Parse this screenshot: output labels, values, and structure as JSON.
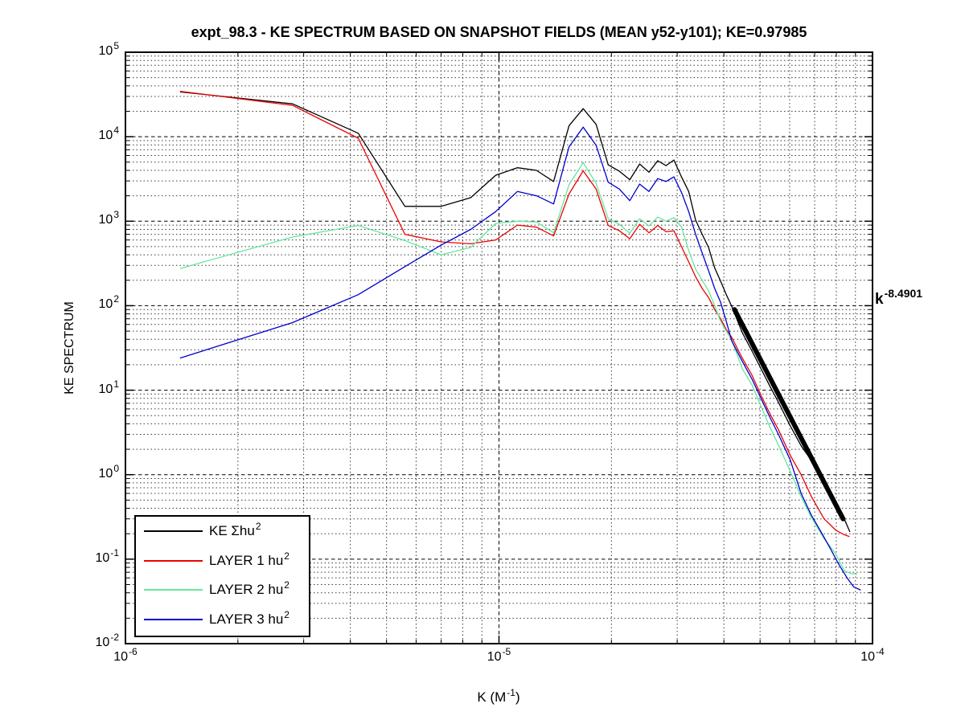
{
  "title": "expt_98.3 - KE SPECTRUM BASED ON SNAPSHOT FIELDS (MEAN y52-y101); KE=0.97985",
  "axes": {
    "ylabel": "KE SPECTRUM",
    "xlabel_base": "K  (M",
    "xlabel_exp": "-1",
    "xlabel_suffix": ")",
    "tick_base": "10",
    "x_tick_exps": [
      "-6",
      "-5",
      "-4"
    ],
    "x_tick_values": [
      1e-06,
      1e-05,
      0.0001
    ],
    "y_tick_exps": [
      "5",
      "4",
      "3",
      "2",
      "1",
      "0",
      "-1",
      "-2"
    ],
    "y_tick_values": [
      100000.0,
      10000.0,
      1000.0,
      100.0,
      10.0,
      1.0,
      0.1,
      0.01
    ]
  },
  "annotation": {
    "base": "k",
    "exp": "-8.4901"
  },
  "legend": {
    "items": [
      {
        "base": "KE Σhu",
        "exp": "2",
        "color": "#000000"
      },
      {
        "base": "LAYER 1 hu",
        "exp": "2",
        "color": "#ee0000"
      },
      {
        "base": "LAYER 2 hu",
        "exp": "2",
        "color": "#63e89e"
      },
      {
        "base": "LAYER 3 hu",
        "exp": "2",
        "color": "#0000cc"
      }
    ]
  },
  "chart_data": {
    "type": "line",
    "title": "expt_98.3 - KE SPECTRUM BASED ON SNAPSHOT FIELDS (MEAN y52-y101); KE=0.97985",
    "xlabel": "K (M^-1)",
    "ylabel": "KE SPECTRUM",
    "x_scale": "log",
    "y_scale": "log",
    "xlim": [
      1e-06,
      0.0001
    ],
    "ylim": [
      0.01,
      100000.0
    ],
    "grid": true,
    "minor_grid": true,
    "legend_position": "lower-left",
    "series": [
      {
        "name": "KE sum hu^2",
        "color": "#000000",
        "points": [
          [
            1.4e-06,
            34000.0
          ],
          [
            2.8e-06,
            24500.0
          ],
          [
            4.2e-06,
            11000.0
          ],
          [
            5.6e-06,
            1500.0
          ],
          [
            7e-06,
            1500.0
          ],
          [
            8.4e-06,
            1900.0
          ],
          [
            9.8e-06,
            3500.0
          ],
          [
            1.12e-05,
            4300.0
          ],
          [
            1.26e-05,
            4000.0
          ],
          [
            1.4e-05,
            2950.0
          ],
          [
            1.54e-05,
            13500.0
          ],
          [
            1.68e-05,
            21500.0
          ],
          [
            1.82e-05,
            14000.0
          ],
          [
            1.96e-05,
            4650.0
          ],
          [
            2.1e-05,
            3900.0
          ],
          [
            2.24e-05,
            3100.0
          ],
          [
            2.38e-05,
            4750.0
          ],
          [
            2.52e-05,
            3800.0
          ],
          [
            2.66e-05,
            5200.0
          ],
          [
            2.8e-05,
            4550.0
          ],
          [
            2.94e-05,
            5300.0
          ],
          [
            3.08e-05,
            3350.0
          ],
          [
            3.22e-05,
            2250.0
          ],
          [
            3.36e-05,
            1030.0
          ],
          [
            3.5e-05,
            700.0
          ],
          [
            3.64e-05,
            490.0
          ],
          [
            3.78e-05,
            280.0
          ],
          [
            3.92e-05,
            195.0
          ],
          [
            4.06e-05,
            135.0
          ],
          [
            4.2e-05,
            98.0
          ],
          [
            4.48e-05,
            48.0
          ],
          [
            4.76e-05,
            29.0
          ],
          [
            5.04e-05,
            17.6
          ],
          [
            5.32e-05,
            11.0
          ],
          [
            5.6e-05,
            7.2
          ],
          [
            6.02e-05,
            3.8
          ],
          [
            6.44e-05,
            2.2
          ],
          [
            7e-05,
            1.3
          ],
          [
            7.56e-05,
            0.72
          ],
          [
            8.12e-05,
            0.42
          ],
          [
            8.4e-05,
            0.3
          ],
          [
            8.7e-05,
            0.21
          ]
        ]
      },
      {
        "name": "LAYER 1 hu^2",
        "color": "#ee0000",
        "points": [
          [
            1.4e-06,
            34500.0
          ],
          [
            2.8e-06,
            23500.0
          ],
          [
            4.2e-06,
            9600.0
          ],
          [
            5.6e-06,
            700.0
          ],
          [
            7e-06,
            570.0
          ],
          [
            8.4e-06,
            540.0
          ],
          [
            9.8e-06,
            600.0
          ],
          [
            1.12e-05,
            900.0
          ],
          [
            1.26e-05,
            850.0
          ],
          [
            1.4e-05,
            670.0
          ],
          [
            1.54e-05,
            2100.0
          ],
          [
            1.68e-05,
            3950.0
          ],
          [
            1.82e-05,
            2400.0
          ],
          [
            1.96e-05,
            890.0
          ],
          [
            2.1e-05,
            770.0
          ],
          [
            2.24e-05,
            620.0
          ],
          [
            2.38e-05,
            920.0
          ],
          [
            2.52e-05,
            730.0
          ],
          [
            2.66e-05,
            890.0
          ],
          [
            2.8e-05,
            750.0
          ],
          [
            2.94e-05,
            770.0
          ],
          [
            3.08e-05,
            500.0
          ],
          [
            3.22e-05,
            330.0
          ],
          [
            3.36e-05,
            220.0
          ],
          [
            3.5e-05,
            160.0
          ],
          [
            3.64e-05,
            125.0
          ],
          [
            3.78e-05,
            90.0
          ],
          [
            3.92e-05,
            70.0
          ],
          [
            4.06e-05,
            52.0
          ],
          [
            4.2e-05,
            42.0
          ],
          [
            4.48e-05,
            24.0
          ],
          [
            4.76e-05,
            15.0
          ],
          [
            5.04e-05,
            8.5
          ],
          [
            5.32e-05,
            5.2
          ],
          [
            5.6e-05,
            3.4
          ],
          [
            6.02e-05,
            1.7
          ],
          [
            6.44e-05,
            1.0
          ],
          [
            6.86e-05,
            0.55
          ],
          [
            7.42e-05,
            0.3
          ],
          [
            7.98e-05,
            0.22
          ],
          [
            8.4e-05,
            0.195
          ],
          [
            8.68e-05,
            0.185
          ]
        ]
      },
      {
        "name": "LAYER 2 hu^2",
        "color": "#63e89e",
        "points": [
          [
            1.4e-06,
            275.0
          ],
          [
            2.8e-06,
            650.0
          ],
          [
            4.2e-06,
            890.0
          ],
          [
            5.6e-06,
            590.0
          ],
          [
            7e-06,
            400.0
          ],
          [
            8.4e-06,
            490.0
          ],
          [
            9.8e-06,
            940.0
          ],
          [
            1.12e-05,
            1000.0
          ],
          [
            1.26e-05,
            980.0
          ],
          [
            1.4e-05,
            730.0
          ],
          [
            1.54e-05,
            2700.0
          ],
          [
            1.68e-05,
            4950.0
          ],
          [
            1.82e-05,
            2800.0
          ],
          [
            1.96e-05,
            1070.0
          ],
          [
            2.1e-05,
            920.0
          ],
          [
            2.24e-05,
            720.0
          ],
          [
            2.38e-05,
            1070.0
          ],
          [
            2.52e-05,
            880.0
          ],
          [
            2.66e-05,
            1120.0
          ],
          [
            2.8e-05,
            1000.0
          ],
          [
            2.94e-05,
            1100.0
          ],
          [
            3.08e-05,
            860.0
          ],
          [
            3.22e-05,
            450.0
          ],
          [
            3.36e-05,
            270.0
          ],
          [
            3.5e-05,
            200.0
          ],
          [
            3.64e-05,
            150.0
          ],
          [
            3.78e-05,
            100.0
          ],
          [
            3.92e-05,
            65.0
          ],
          [
            4.06e-05,
            50.0
          ],
          [
            4.2e-05,
            39.0
          ],
          [
            4.48e-05,
            18.0
          ],
          [
            4.76e-05,
            11.5
          ],
          [
            5.04e-05,
            6.3
          ],
          [
            5.32e-05,
            3.6
          ],
          [
            5.6e-05,
            2.25
          ],
          [
            6.02e-05,
            1.1
          ],
          [
            6.44e-05,
            0.55
          ],
          [
            6.86e-05,
            0.31
          ],
          [
            7.42e-05,
            0.175
          ],
          [
            7.98e-05,
            0.115
          ],
          [
            8.4e-05,
            0.073
          ],
          [
            8.75e-05,
            0.068
          ],
          [
            9.1e-05,
            0.066
          ]
        ]
      },
      {
        "name": "LAYER 3 hu^2",
        "color": "#0000cc",
        "points": [
          [
            1.4e-06,
            24.0
          ],
          [
            2.8e-06,
            63.0
          ],
          [
            4.2e-06,
            135.0
          ],
          [
            5.6e-06,
            290.0
          ],
          [
            7e-06,
            520.0
          ],
          [
            8.4e-06,
            800.0
          ],
          [
            9.8e-06,
            1300.0
          ],
          [
            1.12e-05,
            2250.0
          ],
          [
            1.26e-05,
            2000.0
          ],
          [
            1.4e-05,
            1600.0
          ],
          [
            1.54e-05,
            7600.0
          ],
          [
            1.68e-05,
            13000.0
          ],
          [
            1.82e-05,
            7900.0
          ],
          [
            1.96e-05,
            2900.0
          ],
          [
            2.1e-05,
            2400.0
          ],
          [
            2.24e-05,
            1750.0
          ],
          [
            2.38e-05,
            2750.0
          ],
          [
            2.52e-05,
            2250.0
          ],
          [
            2.66e-05,
            3200.0
          ],
          [
            2.8e-05,
            2950.0
          ],
          [
            2.94e-05,
            3350.0
          ],
          [
            3.08e-05,
            2200.0
          ],
          [
            3.22e-05,
            1300.0
          ],
          [
            3.36e-05,
            700.0
          ],
          [
            3.5e-05,
            420.0
          ],
          [
            3.64e-05,
            260.0
          ],
          [
            3.78e-05,
            160.0
          ],
          [
            3.92e-05,
            110.0
          ],
          [
            4.06e-05,
            65.0
          ],
          [
            4.2e-05,
            38.0
          ],
          [
            4.48e-05,
            22.0
          ],
          [
            4.76e-05,
            13.5
          ],
          [
            5.04e-05,
            7.8
          ],
          [
            5.32e-05,
            4.7
          ],
          [
            5.6e-05,
            3.0
          ],
          [
            6.02e-05,
            1.5
          ],
          [
            6.44e-05,
            0.6
          ],
          [
            6.86e-05,
            0.33
          ],
          [
            7.28e-05,
            0.21
          ],
          [
            7.7e-05,
            0.135
          ],
          [
            8.12e-05,
            0.087
          ],
          [
            8.55e-05,
            0.06
          ],
          [
            8.9e-05,
            0.047
          ],
          [
            9.3e-05,
            0.043
          ]
        ]
      }
    ],
    "fit_line": {
      "label": "k^-8.4901",
      "slope": -8.4901,
      "color": "#000000",
      "stroke_width": 6,
      "from": [
        4.27e-05,
        90
      ],
      "to": [
        8.34e-05,
        0.3
      ]
    }
  }
}
